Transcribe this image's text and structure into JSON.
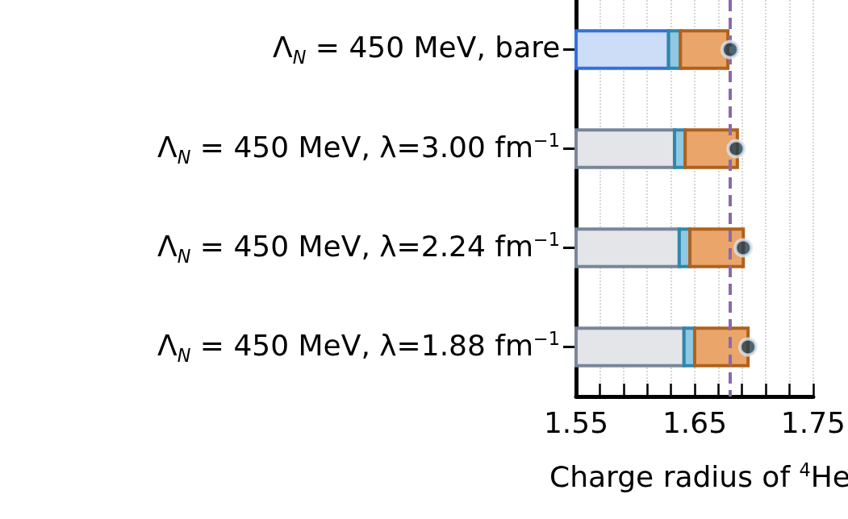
{
  "chart_data": {
    "type": "bar",
    "orientation": "horizontal",
    "xlabel": "Charge radius of $^{4}$He",
    "categories": [
      "Λ$_{N}$ = 450 MeV, bare",
      "Λ$_{N}$ = 450 MeV, λ=3.00 fm$^{−1}$",
      "Λ$_{N}$ = 450 MeV, λ=2.24 fm$^{−1}$",
      "Λ$_{N}$ = 450 MeV, λ=1.88 fm$^{−1}$"
    ],
    "series": [
      {
        "colors": [
          "#cddcf7",
          "#e3e5e8",
          "#e3e5e8",
          "#e3e5e8"
        ],
        "base": [
          1.55,
          1.55,
          1.55,
          1.55
        ],
        "values": [
          0.078,
          0.083,
          0.087,
          0.091
        ]
      },
      {
        "color": "#8ec8e2",
        "base": [
          1.628,
          1.633,
          1.637,
          1.641
        ],
        "values": [
          0.01,
          0.009,
          0.009,
          0.009
        ]
      },
      {
        "color": "#eaa66a",
        "base": [
          1.638,
          1.642,
          1.646,
          1.65
        ],
        "values": [
          0.04,
          0.044,
          0.045,
          0.045
        ]
      },
      {
        "type": "scatter",
        "color": "#1f3f4f",
        "marker": "circle",
        "x": [
          "Λ$_{N}$ = 450 MeV, bare",
          "Λ$_{N}$ = 450 MeV, λ=3.00 fm$^{−1}$",
          "Λ$_{N}$ = 450 MeV, λ=2.24 fm$^{−1}$",
          "Λ$_{N}$ = 450 MeV, λ=1.88 fm$^{−1}$"
        ],
        "values": [
          1.68,
          1.685,
          1.691,
          1.695
        ]
      }
    ],
    "xlim": [
      1.55,
      1.75
    ],
    "xticks": [
      1.55,
      {
        "value": 1.57,
        "label": null
      },
      {
        "value": 1.59,
        "label": null
      },
      {
        "value": 1.61,
        "label": null
      },
      {
        "value": 1.63,
        "label": null
      },
      1.65,
      {
        "value": 1.67,
        "label": null
      },
      {
        "value": 1.69,
        "label": null
      },
      {
        "value": 1.71,
        "label": null
      },
      {
        "value": 1.73,
        "label": null
      },
      1.75
    ],
    "ref_lines": [
      {
        "axis": "x",
        "value": 1.68,
        "color": "#8a69ad",
        "line_style": "dashed"
      }
    ],
    "grid": "x"
  }
}
